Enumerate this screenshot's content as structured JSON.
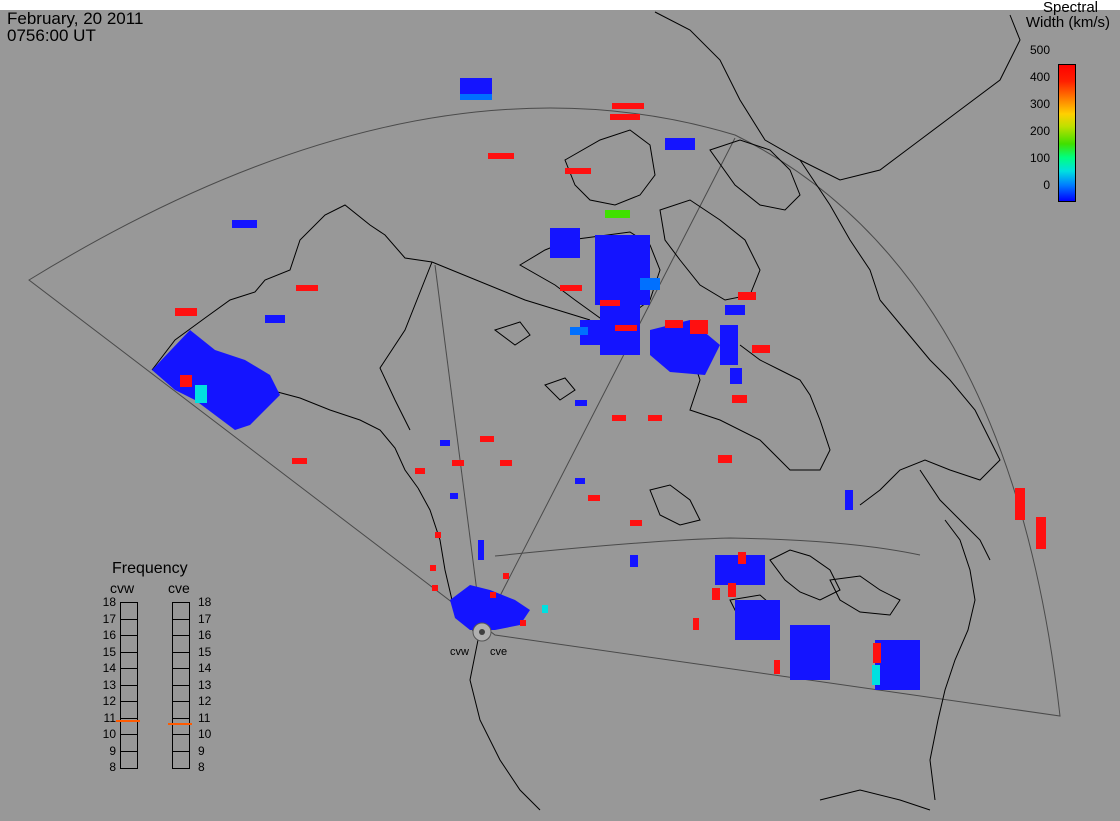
{
  "header": {
    "date": "February, 20 2011",
    "time": "0756:00 UT"
  },
  "colorbar": {
    "title_line1": "Spectral",
    "title_line2": "Width (km/s)",
    "ticks": [
      "500",
      "400",
      "300",
      "200",
      "100",
      "0"
    ],
    "colors": [
      "#0000ff",
      "#00e0e0",
      "#40e000",
      "#ffd000",
      "#ff0000"
    ]
  },
  "frequency_panel": {
    "title": "Frequency",
    "col_left": "cvw",
    "col_right": "cve",
    "ticks": [
      "18",
      "17",
      "16",
      "15",
      "14",
      "13",
      "12",
      "11",
      "10",
      "9",
      "8"
    ],
    "cvw_value_mhz": 10.8,
    "cve_value_mhz": 10.6,
    "marker_color": "#ff5a00"
  },
  "radars": {
    "west": "cvw",
    "east": "cve"
  },
  "map": {
    "background": "#989898",
    "coastline_color": "#000000",
    "fov_color": "#4a4a4a"
  }
}
